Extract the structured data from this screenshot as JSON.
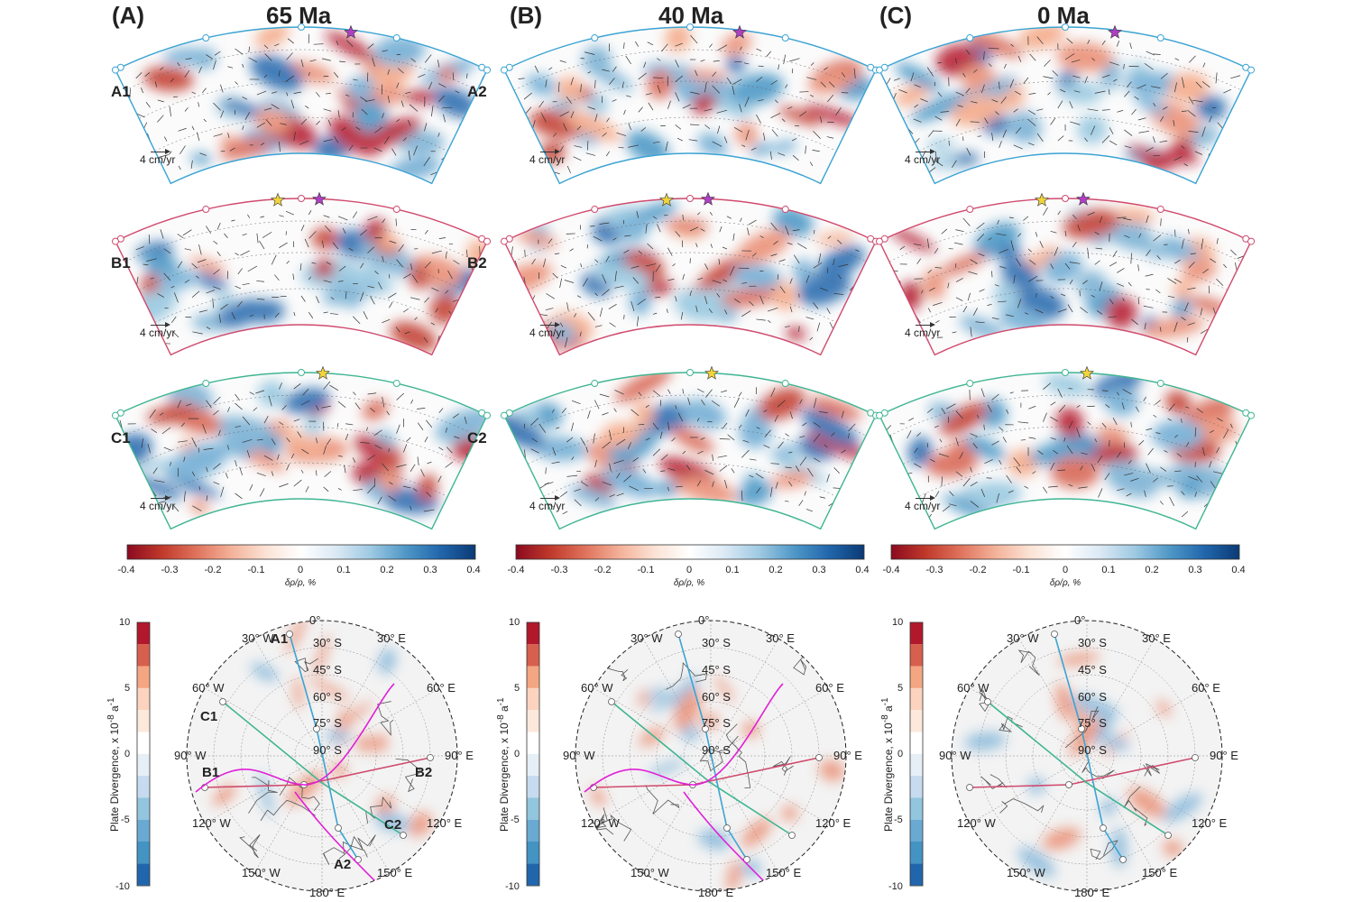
{
  "columns": [
    {
      "title": "65 Ma",
      "panel": "(A)"
    },
    {
      "title": "40 Ma",
      "panel": "(B)"
    },
    {
      "title": "0 Ma",
      "panel": "(C)"
    }
  ],
  "sections": [
    {
      "left": "A1",
      "right": "A2",
      "color": "#3aa3d3"
    },
    {
      "left": "B1",
      "right": "B2",
      "color": "#d04a6e"
    },
    {
      "left": "C1",
      "right": "C2",
      "color": "#3fb592"
    }
  ],
  "scale_label": "4 cm/yr",
  "density_colorbar": {
    "ticks": [
      "-0.4",
      "-0.3",
      "-0.2",
      "-0.1",
      "0",
      "0.1",
      "0.2",
      "0.3",
      "0.4"
    ],
    "label": "δρ/ρ, %",
    "colors": [
      "#8b0a1f",
      "#c0392b",
      "#e0735d",
      "#f4b29a",
      "#fbe3d6",
      "#ffffff",
      "#dbe9f5",
      "#9ec9e2",
      "#4f97c7",
      "#2166ac",
      "#0b3a75"
    ]
  },
  "divergence_colorbar": {
    "ticks": [
      "10",
      "5",
      "0",
      "-5",
      "-10"
    ],
    "label_main": "Plate Divergence, x 10",
    "label_exp": "-8",
    "label_unit": " a",
    "label_unit_exp": "-1"
  },
  "polar_labels": {
    "zero": "0°",
    "w30": "30° W",
    "e30": "30° E",
    "w60": "60° W",
    "e60": "60° E",
    "w90": "90° W",
    "e90": "90° E",
    "w120": "120° W",
    "e120": "120° E",
    "w150": "150° W",
    "e150": "150° E",
    "e180": "180° E",
    "s30": "30° S",
    "s45": "45° S",
    "s60": "60° S",
    "s75": "75° S",
    "s90": "90° S"
  },
  "polar_nodes_65": [
    "A1",
    "C1",
    "B1",
    "B2",
    "C2",
    "A2"
  ]
}
